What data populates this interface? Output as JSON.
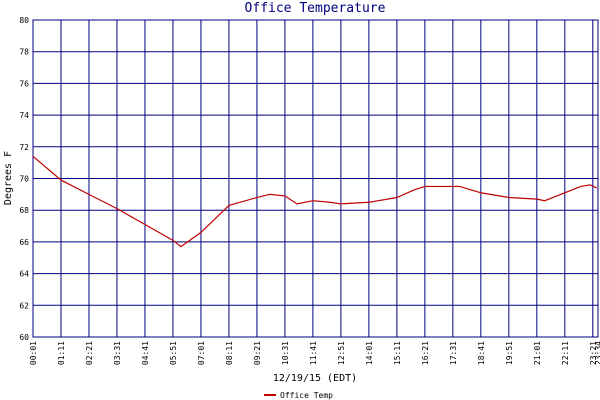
{
  "chart_data": {
    "type": "line",
    "title": "Office Temperature",
    "xlabel": "12/19/15 (EDT)",
    "ylabel": "Degrees F",
    "x": [
      1,
      71,
      141,
      211,
      281,
      351,
      371,
      421,
      491,
      561,
      593,
      631,
      661,
      701,
      743,
      771,
      841,
      911,
      956,
      981,
      1068,
      1121,
      1191,
      1261,
      1281,
      1331,
      1371,
      1394,
      1411
    ],
    "series": [
      {
        "name": "Office Temp",
        "color": "#c00000",
        "values": [
          71.4,
          69.9,
          69.0,
          68.1,
          67.1,
          66.1,
          65.7,
          66.6,
          68.3,
          68.8,
          69.0,
          68.9,
          68.4,
          68.6,
          68.5,
          68.4,
          68.5,
          68.8,
          69.3,
          69.5,
          69.5,
          69.1,
          68.8,
          68.7,
          68.6,
          69.1,
          69.5,
          69.6,
          69.4
        ]
      }
    ],
    "xlim": [
      1,
      1414
    ],
    "xticks": [
      {
        "value": 1,
        "label": "00:01"
      },
      {
        "value": 71,
        "label": "01:11"
      },
      {
        "value": 141,
        "label": "02:21"
      },
      {
        "value": 211,
        "label": "03:31"
      },
      {
        "value": 281,
        "label": "04:41"
      },
      {
        "value": 351,
        "label": "05:51"
      },
      {
        "value": 421,
        "label": "07:01"
      },
      {
        "value": 491,
        "label": "08:11"
      },
      {
        "value": 561,
        "label": "09:21"
      },
      {
        "value": 631,
        "label": "10:31"
      },
      {
        "value": 701,
        "label": "11:41"
      },
      {
        "value": 771,
        "label": "12:51"
      },
      {
        "value": 841,
        "label": "14:01"
      },
      {
        "value": 911,
        "label": "15:11"
      },
      {
        "value": 981,
        "label": "16:21"
      },
      {
        "value": 1051,
        "label": "17:31"
      },
      {
        "value": 1121,
        "label": "18:41"
      },
      {
        "value": 1191,
        "label": "19:51"
      },
      {
        "value": 1261,
        "label": "21:01"
      },
      {
        "value": 1331,
        "label": "22:11"
      },
      {
        "value": 1401,
        "label": "23:21"
      },
      {
        "value": 1414,
        "label": "23:34"
      }
    ],
    "ylim": [
      60,
      80
    ],
    "yticks": [
      60,
      62,
      64,
      66,
      68,
      70,
      72,
      74,
      76,
      78,
      80
    ],
    "grid": true,
    "grid_color": "#000080",
    "legend": "bottom"
  }
}
